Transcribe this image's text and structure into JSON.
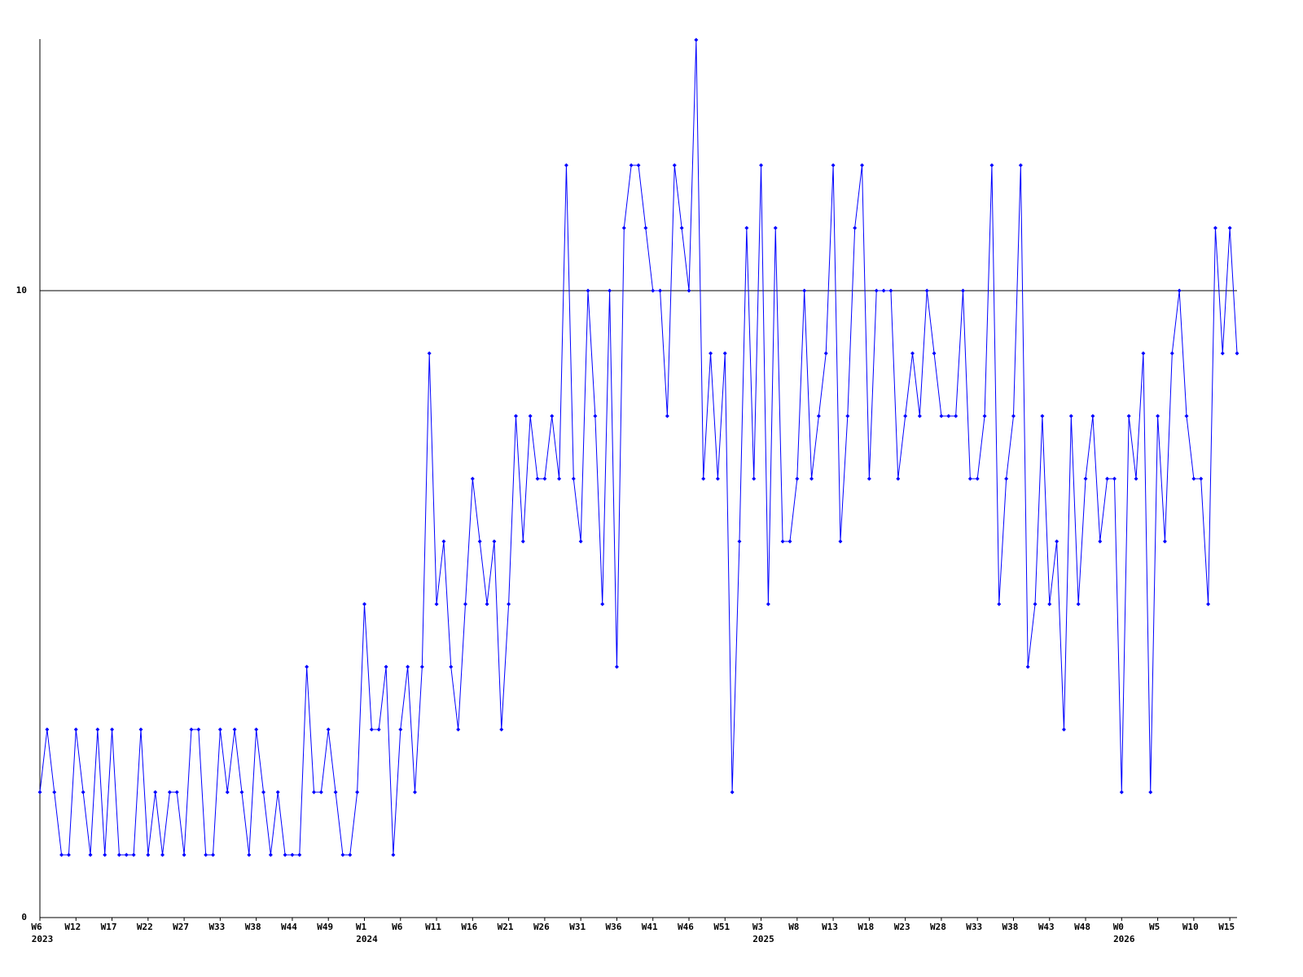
{
  "chart_data": {
    "type": "line",
    "color": "#0000ff",
    "categories": [
      "W6",
      null,
      null,
      null,
      null,
      "W12",
      null,
      null,
      null,
      null,
      "W17",
      null,
      null,
      null,
      null,
      "W22",
      null,
      null,
      null,
      null,
      "W27",
      null,
      null,
      null,
      null,
      "W33",
      null,
      null,
      null,
      null,
      "W38",
      null,
      null,
      null,
      null,
      "W44",
      null,
      null,
      null,
      null,
      "W49",
      null,
      null,
      null,
      null,
      "W1",
      null,
      null,
      null,
      null,
      "W6",
      null,
      null,
      null,
      null,
      "W11",
      null,
      null,
      null,
      null,
      "W16",
      null,
      null,
      null,
      null,
      "W21",
      null,
      null,
      null,
      null,
      "W26",
      null,
      null,
      null,
      null,
      "W31",
      null,
      null,
      null,
      null,
      "W36",
      null,
      null,
      null,
      null,
      "W41",
      null,
      null,
      null,
      null,
      "W46",
      null,
      null,
      null,
      null,
      "W51",
      null,
      null,
      null,
      null,
      "W3",
      null,
      null,
      null,
      null,
      "W8",
      null,
      null,
      null,
      null,
      "W13",
      null,
      null,
      null,
      null,
      "W18",
      null,
      null,
      null,
      null,
      "W23",
      null,
      null,
      null,
      null,
      "W28",
      null,
      null,
      null,
      null,
      "W33",
      null,
      null,
      null,
      null,
      "W38",
      null,
      null,
      null,
      null,
      "W43",
      null,
      null,
      null,
      null,
      "W48",
      null,
      null,
      null,
      null,
      "W0",
      null,
      null,
      null,
      null,
      "W5",
      null,
      null,
      null,
      null,
      "W10",
      null,
      null,
      null,
      null,
      "W15",
      null
    ],
    "years": [
      "2023",
      null,
      null,
      null,
      null,
      null,
      null,
      null,
      null,
      null,
      null,
      null,
      null,
      null,
      null,
      null,
      null,
      null,
      null,
      null,
      null,
      null,
      null,
      null,
      null,
      null,
      null,
      null,
      null,
      null,
      null,
      null,
      null,
      null,
      null,
      null,
      null,
      null,
      null,
      null,
      null,
      null,
      null,
      null,
      null,
      "2024",
      null,
      null,
      null,
      null,
      null,
      null,
      null,
      null,
      null,
      null,
      null,
      null,
      null,
      null,
      null,
      null,
      null,
      null,
      null,
      null,
      null,
      null,
      null,
      null,
      null,
      null,
      null,
      null,
      null,
      null,
      null,
      null,
      null,
      null,
      null,
      null,
      null,
      null,
      null,
      null,
      null,
      null,
      null,
      null,
      null,
      null,
      null,
      null,
      null,
      null,
      null,
      null,
      null,
      null,
      "2025",
      null,
      null,
      null,
      null,
      null,
      null,
      null,
      null,
      null,
      null,
      null,
      null,
      null,
      null,
      null,
      null,
      null,
      null,
      null,
      null,
      null,
      null,
      null,
      null,
      null,
      null,
      null,
      null,
      null,
      null,
      null,
      null,
      null,
      null,
      null,
      null,
      null,
      null,
      null,
      null,
      null,
      null,
      null,
      null,
      null,
      null,
      null,
      null,
      null,
      "2026",
      null,
      null,
      null,
      null,
      null,
      null,
      null,
      null,
      null,
      null,
      null,
      null,
      null,
      null,
      null,
      null
    ],
    "values": [
      2,
      3,
      2,
      1,
      1,
      3,
      2,
      1,
      3,
      1,
      3,
      1,
      1,
      1,
      3,
      1,
      2,
      1,
      2,
      2,
      1,
      3,
      3,
      1,
      1,
      3,
      2,
      3,
      2,
      1,
      3,
      2,
      1,
      2,
      1,
      1,
      1,
      4,
      2,
      2,
      3,
      2,
      1,
      1,
      2,
      5,
      3,
      3,
      4,
      1,
      3,
      4,
      2,
      4,
      9,
      5,
      6,
      4,
      3,
      5,
      7,
      6,
      5,
      6,
      3,
      5,
      8,
      6,
      8,
      7,
      7,
      8,
      7,
      12,
      7,
      6,
      10,
      8,
      5,
      10,
      4,
      11,
      12,
      12,
      11,
      10,
      10,
      8,
      12,
      11,
      10,
      14,
      7,
      9,
      7,
      9,
      2,
      6,
      11,
      7,
      12,
      5,
      11,
      6,
      6,
      7,
      10,
      7,
      8,
      9,
      12,
      6,
      8,
      11,
      12,
      7,
      10,
      10,
      10,
      7,
      8,
      9,
      8,
      10,
      9,
      8,
      8,
      8,
      10,
      7,
      7,
      8,
      12,
      5,
      7,
      8,
      12,
      4,
      5,
      8,
      5,
      6,
      3,
      8,
      5,
      7,
      8,
      6,
      7,
      7,
      2,
      8,
      7,
      9,
      2,
      8,
      6,
      9,
      10,
      8,
      7,
      7,
      5,
      11,
      9,
      11,
      9
    ],
    "ylim": [
      0,
      14
    ],
    "yticks": [
      0,
      10
    ],
    "grid": true
  }
}
